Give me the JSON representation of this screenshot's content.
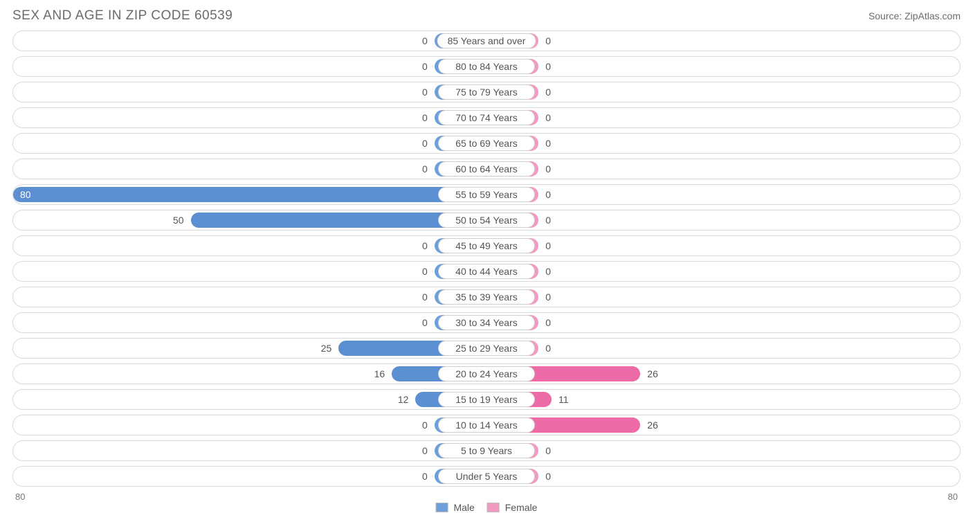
{
  "title": "SEX AND AGE IN ZIP CODE 60539",
  "source": "Source: ZipAtlas.com",
  "chart": {
    "type": "population-pyramid",
    "male_color": "#6f9fd8",
    "male_color_strong": "#5b8fd1",
    "female_color": "#f49ac1",
    "female_color_strong": "#ed6ba7",
    "pill_bg": "#ffffff",
    "pill_border": "#d0d0d0",
    "row_border": "#d9d9d9",
    "text_color": "#555555",
    "axis_max": 80,
    "min_bar_pct": 11,
    "label_fontsize": 14,
    "value_fontsize": 14,
    "rows": [
      {
        "label": "85 Years and over",
        "male": 0,
        "female": 0
      },
      {
        "label": "80 to 84 Years",
        "male": 0,
        "female": 0
      },
      {
        "label": "75 to 79 Years",
        "male": 0,
        "female": 0
      },
      {
        "label": "70 to 74 Years",
        "male": 0,
        "female": 0
      },
      {
        "label": "65 to 69 Years",
        "male": 0,
        "female": 0
      },
      {
        "label": "60 to 64 Years",
        "male": 0,
        "female": 0
      },
      {
        "label": "55 to 59 Years",
        "male": 80,
        "female": 0
      },
      {
        "label": "50 to 54 Years",
        "male": 50,
        "female": 0
      },
      {
        "label": "45 to 49 Years",
        "male": 0,
        "female": 0
      },
      {
        "label": "40 to 44 Years",
        "male": 0,
        "female": 0
      },
      {
        "label": "35 to 39 Years",
        "male": 0,
        "female": 0
      },
      {
        "label": "30 to 34 Years",
        "male": 0,
        "female": 0
      },
      {
        "label": "25 to 29 Years",
        "male": 25,
        "female": 0
      },
      {
        "label": "20 to 24 Years",
        "male": 16,
        "female": 26
      },
      {
        "label": "15 to 19 Years",
        "male": 12,
        "female": 11
      },
      {
        "label": "10 to 14 Years",
        "male": 0,
        "female": 26
      },
      {
        "label": "5 to 9 Years",
        "male": 0,
        "female": 0
      },
      {
        "label": "Under 5 Years",
        "male": 0,
        "female": 0
      }
    ],
    "axis_left_label": "80",
    "axis_right_label": "80",
    "legend": {
      "male": "Male",
      "female": "Female"
    }
  }
}
